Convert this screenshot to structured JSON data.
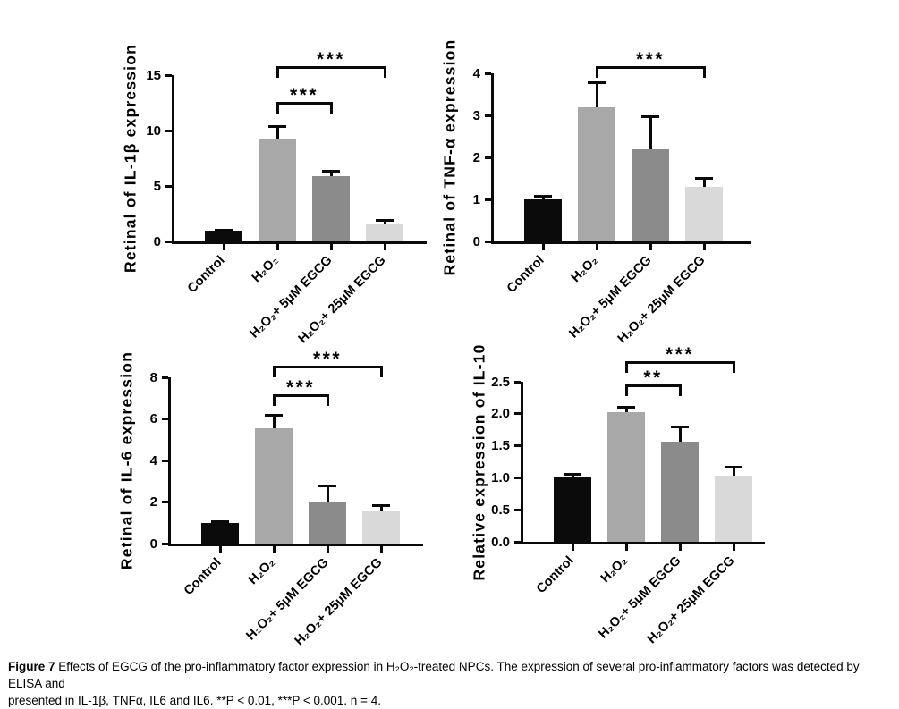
{
  "figure": {
    "caption_label": "Figure 7",
    "caption_line1": "Effects of EGCG of the pro-inflammatory factor expression in H₂O₂-treated NPCs. The expression of several pro-inflammatory factors was detected by ELISA and",
    "caption_line2": "presented in IL-1β, TNFα, IL6 and IL6. **P < 0.01, ***P < 0.001. n = 4."
  },
  "bar_colors": [
    "#0b0b0b",
    "#a8a8a8",
    "#8b8b8b",
    "#d9d9d9"
  ],
  "ink_color": "#0a0a0a",
  "background_color": "#ffffff",
  "chart_data": [
    {
      "type": "bar",
      "title": "",
      "ylabel": "Retinal of IL-1β expression",
      "xlabel": "",
      "categories": [
        "Control",
        "H₂O₂",
        "H₂O₂+ 5μM EGCG",
        "H₂O₂+ 25μM EGCG"
      ],
      "values": [
        1.0,
        9.2,
        5.9,
        1.5
      ],
      "errors": [
        0.12,
        1.3,
        0.55,
        0.55
      ],
      "ylim": [
        0,
        15
      ],
      "yticks": [
        "0",
        "5",
        "10",
        "15"
      ],
      "grid": false,
      "legend": false,
      "significance": [
        {
          "i1": 1,
          "i2": 2,
          "label": "***",
          "y": 12.3
        },
        {
          "i1": 1,
          "i2": 3,
          "label": "***",
          "y": 15.6
        }
      ]
    },
    {
      "type": "bar",
      "title": "",
      "ylabel": "Retinal of TNF-α expression",
      "xlabel": "",
      "categories": [
        "Control",
        "H₂O₂",
        "H₂O₂+ 5μM EGCG",
        "H₂O₂+ 25μM EGCG"
      ],
      "values": [
        1.0,
        3.2,
        2.2,
        1.3
      ],
      "errors": [
        0.1,
        0.6,
        0.8,
        0.23
      ],
      "ylim": [
        0,
        4
      ],
      "yticks": [
        "0",
        "1",
        "2",
        "3",
        "4"
      ],
      "grid": false,
      "legend": false,
      "significance": [
        {
          "i1": 1,
          "i2": 3,
          "label": "***",
          "y": 4.1
        }
      ]
    },
    {
      "type": "bar",
      "title": "",
      "ylabel": "Retinal of IL-6 expression",
      "xlabel": "",
      "categories": [
        "Control",
        "H₂O₂",
        "H₂O₂+ 5μM EGCG",
        "H₂O₂+ 25μM EGCG"
      ],
      "values": [
        1.0,
        5.55,
        2.0,
        1.55
      ],
      "errors": [
        0.12,
        0.7,
        0.85,
        0.35
      ],
      "ylim": [
        0,
        8
      ],
      "yticks": [
        "0",
        "2",
        "4",
        "6",
        "8"
      ],
      "grid": false,
      "legend": false,
      "significance": [
        {
          "i1": 1,
          "i2": 2,
          "label": "***",
          "y": 7.05
        },
        {
          "i1": 1,
          "i2": 3,
          "label": "***",
          "y": 8.45
        }
      ]
    },
    {
      "type": "bar",
      "title": "",
      "ylabel": "Relative expression of IL-10",
      "xlabel": "",
      "categories": [
        "Control",
        "H₂O₂",
        "H₂O₂+ 5μM EGCG",
        "H₂O₂+ 25μM EGCG"
      ],
      "values": [
        1.0,
        2.03,
        1.57,
        1.03
      ],
      "errors": [
        0.08,
        0.1,
        0.25,
        0.16
      ],
      "ylim": [
        0,
        2.5
      ],
      "yticks": [
        "0.0",
        "0.5",
        "1.0",
        "1.5",
        "2.0",
        "2.5"
      ],
      "grid": false,
      "legend": false,
      "significance": [
        {
          "i1": 1,
          "i2": 2,
          "label": "**",
          "y": 2.42
        },
        {
          "i1": 1,
          "i2": 3,
          "label": "***",
          "y": 2.78
        }
      ]
    }
  ]
}
